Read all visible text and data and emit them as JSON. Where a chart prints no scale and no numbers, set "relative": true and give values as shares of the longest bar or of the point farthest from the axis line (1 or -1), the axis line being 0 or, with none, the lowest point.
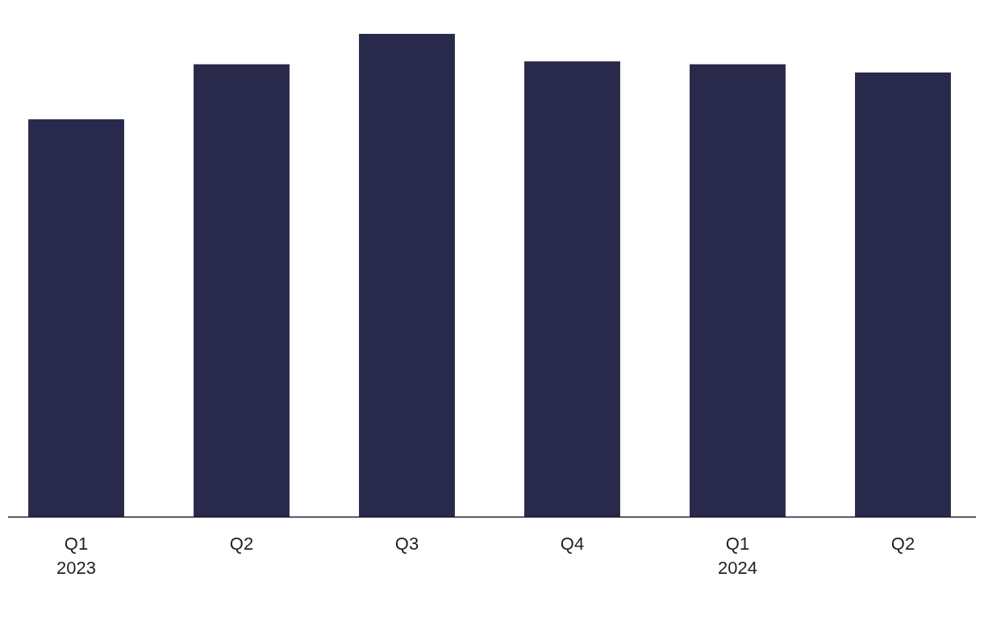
{
  "chart_data": {
    "type": "bar",
    "relative": true,
    "categories": [
      "Q1\n2023",
      "Q2",
      "Q3",
      "Q4",
      "Q1\n2024",
      "Q2"
    ],
    "values": [
      0.823,
      0.937,
      1,
      0.943,
      0.937,
      0.92
    ],
    "color": "#29294b"
  }
}
